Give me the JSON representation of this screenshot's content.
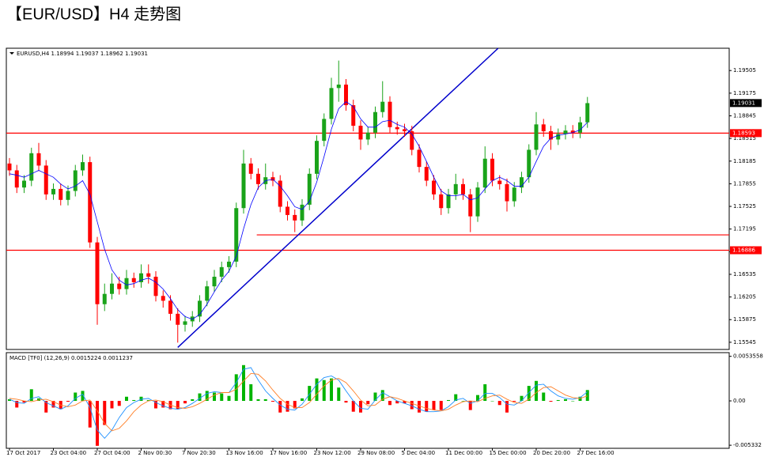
{
  "title": "【EUR/USD】H4 走势图",
  "chart_data": [
    {
      "type": "candlestick",
      "header": "EURUSD,H4  1.18994 1.19037 1.18962 1.19031",
      "categories": [
        "17 Oct 2017",
        null,
        null,
        null,
        null,
        null,
        "23 Oct 04:00",
        null,
        null,
        null,
        null,
        null,
        "27 Oct 04:00",
        null,
        null,
        null,
        null,
        null,
        "2 Nov 00:30",
        null,
        null,
        null,
        null,
        null,
        "7 Nov 20:30",
        null,
        null,
        null,
        null,
        null,
        "13 Nov 16:00",
        null,
        null,
        null,
        null,
        null,
        "17 Nov 16:00",
        null,
        null,
        null,
        null,
        null,
        "23 Nov 12:00",
        null,
        null,
        null,
        null,
        null,
        "29 Nov 08:00",
        null,
        null,
        null,
        null,
        null,
        "5 Dec 04:00",
        null,
        null,
        null,
        null,
        null,
        "11 Dec 00:00",
        null,
        null,
        null,
        null,
        null,
        "15 Dec 00:00",
        null,
        null,
        null,
        null,
        null,
        "20 Dec 20:00",
        null,
        null,
        null,
        null,
        null,
        "27 Dec 16:00",
        null
      ],
      "open": [
        1.1815,
        1.1805,
        1.178,
        1.179,
        1.183,
        1.1812,
        1.177,
        1.1778,
        1.1762,
        1.1775,
        1.1805,
        1.1817,
        1.17,
        1.161,
        1.1625,
        1.164,
        1.1632,
        1.1648,
        1.1642,
        1.1655,
        1.165,
        1.1622,
        1.1615,
        1.1596,
        1.158,
        1.1585,
        1.1592,
        1.1615,
        1.1636,
        1.165,
        1.1664,
        1.1672,
        1.175,
        1.1815,
        1.18,
        1.1785,
        1.1795,
        1.179,
        1.1752,
        1.174,
        1.1732,
        1.1755,
        1.18,
        1.1848,
        1.188,
        1.1925,
        1.193,
        1.19,
        1.187,
        1.185,
        1.186,
        1.189,
        1.1905,
        1.1868,
        1.1865,
        1.1862,
        1.1835,
        1.181,
        1.179,
        1.177,
        1.175,
        1.177,
        1.1785,
        1.177,
        1.1738,
        1.178,
        1.1822,
        1.179,
        1.1785,
        1.176,
        1.178,
        1.1795,
        1.1835,
        1.1872,
        1.1862,
        1.185,
        1.1858,
        1.1863,
        1.186,
        1.1875
      ],
      "high": [
        1.1823,
        1.1813,
        1.1798,
        1.1838,
        1.1845,
        1.182,
        1.1786,
        1.1786,
        1.1783,
        1.1813,
        1.1828,
        1.1825,
        1.1708,
        1.164,
        1.1655,
        1.165,
        1.166,
        1.1656,
        1.1668,
        1.1668,
        1.1658,
        1.163,
        1.1623,
        1.1604,
        1.1593,
        1.16,
        1.1623,
        1.1644,
        1.166,
        1.1672,
        1.168,
        1.1758,
        1.1835,
        1.1823,
        1.1808,
        1.1815,
        1.1803,
        1.1798,
        1.176,
        1.1748,
        1.1763,
        1.1808,
        1.1856,
        1.1888,
        1.194,
        1.1965,
        1.1938,
        1.1908,
        1.1878,
        1.1868,
        1.1898,
        1.1935,
        1.1913,
        1.1876,
        1.1873,
        1.187,
        1.1843,
        1.1818,
        1.1798,
        1.1778,
        1.1778,
        1.18,
        1.1793,
        1.1778,
        1.1788,
        1.184,
        1.183,
        1.1798,
        1.1793,
        1.1788,
        1.1803,
        1.1843,
        1.189,
        1.188,
        1.187,
        1.1866,
        1.1871,
        1.1871,
        1.1883,
        1.1912
      ],
      "low": [
        1.1797,
        1.1772,
        1.1772,
        1.1782,
        1.1804,
        1.1762,
        1.1762,
        1.1754,
        1.1754,
        1.1767,
        1.1797,
        1.1692,
        1.158,
        1.16,
        1.1617,
        1.1624,
        1.1624,
        1.1634,
        1.1634,
        1.164,
        1.1614,
        1.1605,
        1.1586,
        1.1554,
        1.157,
        1.1577,
        1.1584,
        1.1607,
        1.1628,
        1.1642,
        1.1656,
        1.1664,
        1.1742,
        1.1792,
        1.1777,
        1.1777,
        1.1782,
        1.1744,
        1.1732,
        1.1715,
        1.1724,
        1.1747,
        1.1792,
        1.184,
        1.1872,
        1.1905,
        1.1892,
        1.1862,
        1.1835,
        1.1842,
        1.1852,
        1.1882,
        1.186,
        1.1857,
        1.1854,
        1.1827,
        1.1802,
        1.1782,
        1.1762,
        1.174,
        1.1742,
        1.1762,
        1.1762,
        1.1715,
        1.173,
        1.1772,
        1.1782,
        1.1777,
        1.1745,
        1.1752,
        1.1772,
        1.1787,
        1.1827,
        1.1854,
        1.1835,
        1.1842,
        1.185,
        1.1852,
        1.1852,
        1.1867
      ],
      "close": [
        1.1805,
        1.178,
        1.179,
        1.183,
        1.1812,
        1.177,
        1.1778,
        1.1762,
        1.1775,
        1.1805,
        1.1817,
        1.17,
        1.161,
        1.1625,
        1.164,
        1.1632,
        1.1648,
        1.1642,
        1.1655,
        1.165,
        1.1622,
        1.1615,
        1.1596,
        1.158,
        1.1585,
        1.1592,
        1.1615,
        1.1636,
        1.165,
        1.1664,
        1.1672,
        1.175,
        1.1815,
        1.18,
        1.1785,
        1.1795,
        1.179,
        1.1752,
        1.174,
        1.1732,
        1.1755,
        1.18,
        1.1848,
        1.188,
        1.1925,
        1.193,
        1.19,
        1.187,
        1.185,
        1.186,
        1.189,
        1.1905,
        1.1868,
        1.1865,
        1.1862,
        1.1835,
        1.181,
        1.179,
        1.177,
        1.175,
        1.177,
        1.1785,
        1.177,
        1.1738,
        1.178,
        1.1822,
        1.179,
        1.1785,
        1.176,
        1.178,
        1.1795,
        1.1835,
        1.1872,
        1.1862,
        1.185,
        1.1858,
        1.1863,
        1.186,
        1.1875,
        1.1903
      ],
      "up_color": "#1aa31a",
      "down_color": "#ff0000",
      "ma": {
        "color": "#0000ff",
        "values": [
          1.18,
          1.1798,
          1.1795,
          1.18,
          1.1805,
          1.18,
          1.1795,
          1.1785,
          1.1778,
          1.1782,
          1.179,
          1.177,
          1.173,
          1.169,
          1.166,
          1.1645,
          1.1638,
          1.164,
          1.1645,
          1.1648,
          1.1642,
          1.1632,
          1.1618,
          1.1602,
          1.1592,
          1.1588,
          1.1595,
          1.161,
          1.1628,
          1.1645,
          1.1658,
          1.168,
          1.172,
          1.1755,
          1.178,
          1.179,
          1.1792,
          1.1782,
          1.1768,
          1.1752,
          1.1748,
          1.176,
          1.1788,
          1.1825,
          1.1865,
          1.1895,
          1.1905,
          1.1898,
          1.188,
          1.1868,
          1.1868,
          1.1876,
          1.1878,
          1.1872,
          1.1868,
          1.1858,
          1.184,
          1.1818,
          1.1795,
          1.1775,
          1.1768,
          1.1768,
          1.177,
          1.1762,
          1.1765,
          1.1778,
          1.179,
          1.1795,
          1.179,
          1.1782,
          1.1782,
          1.1795,
          1.1818,
          1.184,
          1.1852,
          1.1856,
          1.1858,
          1.186,
          1.1864,
          1.1875
        ]
      },
      "hlines": [
        {
          "value": 1.18593,
          "color": "#ff0000"
        },
        {
          "value": 1.16886,
          "color": "#ff0000"
        }
      ],
      "support_line": {
        "value": 1.1711,
        "from": 33.8,
        "color": "#ff0000"
      },
      "trendline": {
        "x": [
          23,
          66.8
        ],
        "values": [
          1.1547,
          1.1983
        ],
        "color": "#0000cc"
      },
      "last_price": {
        "value": 1.19031,
        "color": "#000000"
      },
      "ylim": [
        1.1544,
        1.1983
      ],
      "yticks": [
        1.19505,
        1.19175,
        1.18845,
        1.18515,
        1.18185,
        1.17855,
        1.17525,
        1.17195,
        1.16865,
        1.16535,
        1.16205,
        1.15875,
        1.15545
      ]
    },
    {
      "type": "macd",
      "header": "MACD [TF0] (12,26,9) 0.0015224 0.0011237",
      "histogram": {
        "up_color": "#00b400",
        "down_color": "#ff0000",
        "values": [
          0.0002,
          -0.0008,
          -0.0002,
          0.0014,
          0.0003,
          -0.0014,
          -0.0008,
          -0.001,
          -0.0001,
          0.001,
          0.0012,
          -0.0032,
          -0.0054,
          -0.0029,
          -0.0009,
          -0.0006,
          0.0005,
          0.0001,
          0.0005,
          0.0001,
          -0.0009,
          -0.0008,
          -0.001,
          -0.001,
          -0.0003,
          0.0002,
          0.0009,
          0.0012,
          0.001,
          0.0009,
          0.0006,
          0.0032,
          0.0043,
          0.002,
          0.0002,
          0.0002,
          -0.0001,
          -0.0014,
          -0.0013,
          -0.0009,
          0.0003,
          0.0018,
          0.0027,
          0.0025,
          0.0027,
          0.0016,
          -0.0002,
          -0.0013,
          -0.0014,
          -0.0004,
          0.001,
          0.0013,
          -0.0005,
          -0.0003,
          -0.0003,
          -0.001,
          -0.0014,
          -0.0013,
          -0.0011,
          -0.0011,
          0.0001,
          0.0008,
          0.0,
          -0.0011,
          0.0007,
          0.002,
          0.0,
          -0.0005,
          -0.0014,
          -0.0001,
          0.0006,
          0.0018,
          0.0024,
          0.001,
          -0.0001,
          0.0001,
          0.0002,
          0.0,
          0.0005,
          0.0013
        ]
      },
      "series": [
        {
          "color": "#1e90ff",
          "values": [
            0.0002,
            -0.0002,
            -0.0003,
            0.0003,
            0.0005,
            -0.0002,
            -0.0006,
            -0.001,
            -0.0006,
            0.0003,
            0.0008,
            -0.0008,
            -0.0035,
            -0.0045,
            -0.0035,
            -0.002,
            -0.0008,
            -0.0002,
            0.0002,
            0.0003,
            -0.0002,
            -0.0006,
            -0.0009,
            -0.001,
            -0.0008,
            -0.0003,
            0.0003,
            0.0009,
            0.0011,
            0.001,
            0.001,
            0.0022,
            0.0038,
            0.004,
            0.0025,
            0.0012,
            0.0003,
            -0.0005,
            -0.001,
            -0.0011,
            -0.0004,
            0.0008,
            0.002,
            0.0028,
            0.003,
            0.0025,
            0.0012,
            0.0,
            -0.0009,
            -0.001,
            0.0001,
            0.001,
            0.0005,
            0.0,
            -0.0003,
            -0.0006,
            -0.001,
            -0.0013,
            -0.0013,
            -0.0012,
            -0.0007,
            0.0001,
            0.0003,
            -0.0003,
            0.0,
            0.0009,
            0.0009,
            0.0004,
            -0.0004,
            -0.0005,
            0.0,
            0.001,
            0.0019,
            0.002,
            0.0012,
            0.0006,
            0.0003,
            0.0002,
            0.0004,
            0.0011
          ]
        },
        {
          "color": "#ff7f27",
          "values": [
            0.0003,
            0.0002,
            0.0,
            -0.0001,
            0.0001,
            0.0002,
            -0.0001,
            -0.0005,
            -0.0007,
            -0.0005,
            0.0,
            0.0001,
            -0.0012,
            -0.0027,
            -0.0036,
            -0.0033,
            -0.0024,
            -0.0013,
            -0.0005,
            0.0,
            0.0001,
            -0.0001,
            -0.0005,
            -0.0008,
            -0.0009,
            -0.0007,
            -0.0003,
            0.0002,
            0.0007,
            0.001,
            0.001,
            0.0014,
            0.0024,
            0.0033,
            0.0032,
            0.0024,
            0.0013,
            0.0003,
            -0.0004,
            -0.0008,
            -0.0008,
            -0.0002,
            0.0008,
            0.0018,
            0.0025,
            0.0027,
            0.0022,
            0.0012,
            0.0001,
            -0.0006,
            -0.0005,
            0.0002,
            0.0005,
            0.0003,
            0.0,
            -0.0003,
            -0.0006,
            -0.0009,
            -0.0011,
            -0.0012,
            -0.001,
            -0.0005,
            -0.0001,
            0.0,
            -0.0001,
            0.0003,
            0.0006,
            0.0007,
            0.0002,
            -0.0002,
            -0.0003,
            0.0002,
            0.001,
            0.0016,
            0.0017,
            0.0012,
            0.0007,
            0.0004,
            0.0003,
            0.0006
          ]
        }
      ],
      "ylim": [
        -0.0057,
        0.0058
      ],
      "yticks": [
        0.0053558,
        {
          "value": 0,
          "label": "0.00"
        },
        -0.005332
      ]
    }
  ]
}
